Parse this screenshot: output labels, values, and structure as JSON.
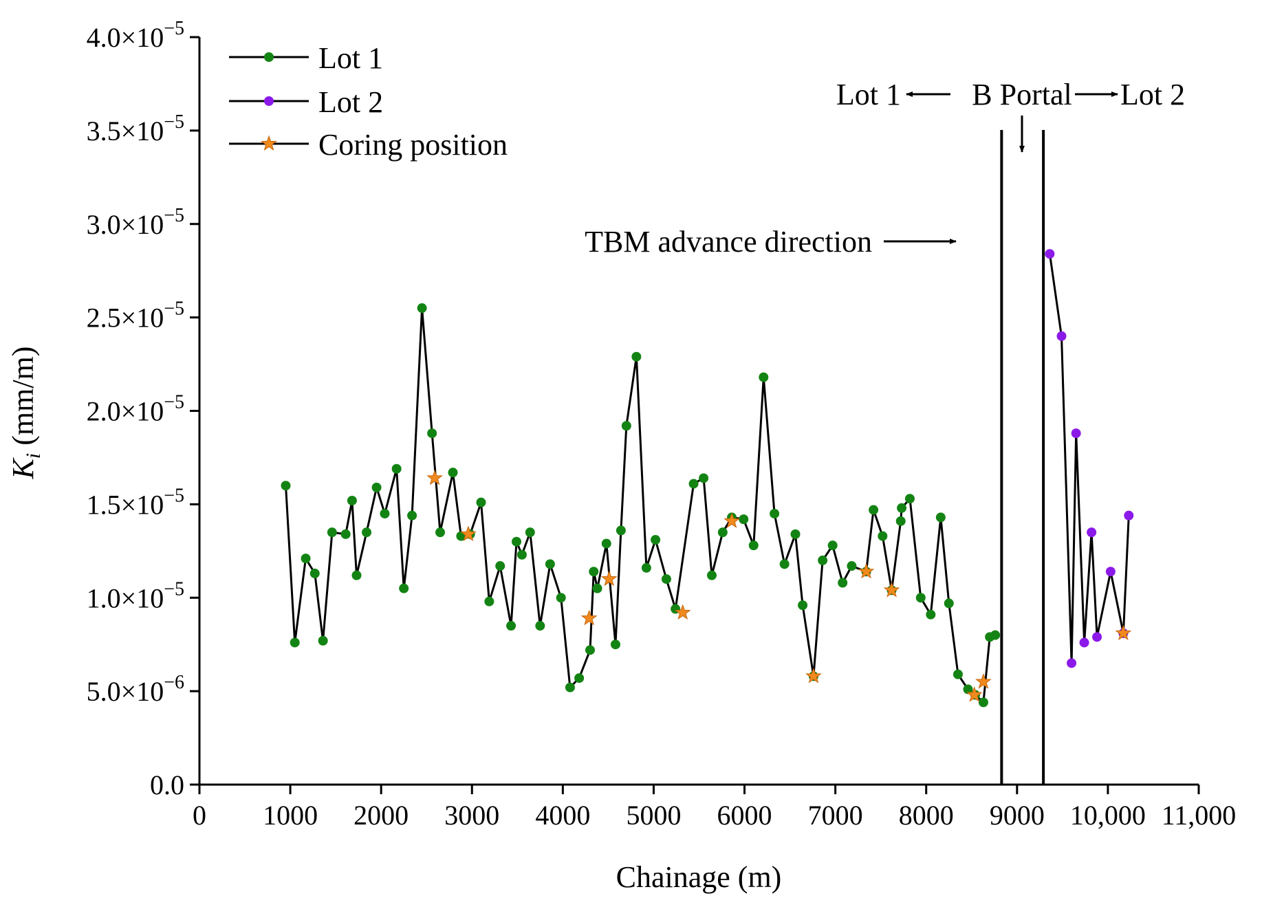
{
  "chart_data": {
    "type": "line",
    "title": "",
    "xlabel": "Chainage (m)",
    "ylabel_main": "K",
    "ylabel_sub": "i",
    "ylabel_unit": " (mm/m)",
    "xlim": [
      0,
      11000
    ],
    "ylim": [
      0,
      4e-05
    ],
    "x_ticks": [
      0,
      1000,
      2000,
      3000,
      4000,
      5000,
      6000,
      7000,
      8000,
      9000,
      10000,
      11000
    ],
    "x_tick_labels": [
      "0",
      "1000",
      "2000",
      "3000",
      "4000",
      "5000",
      "6000",
      "7000",
      "8000",
      "9000",
      "10,000",
      "11,000"
    ],
    "y_ticks": [
      0,
      5e-06,
      1e-05,
      1.5e-05,
      2e-05,
      2.5e-05,
      3e-05,
      3.5e-05,
      4e-05
    ],
    "y_tick_labels": [
      {
        "mantissa": "0.0",
        "exp": ""
      },
      {
        "mantissa": "5.0×10",
        "exp": "−6"
      },
      {
        "mantissa": "1.0×10",
        "exp": "−5"
      },
      {
        "mantissa": "1.5×10",
        "exp": "−5"
      },
      {
        "mantissa": "2.0×10",
        "exp": "−5"
      },
      {
        "mantissa": "2.5×10",
        "exp": "−5"
      },
      {
        "mantissa": "3.0×10",
        "exp": "−5"
      },
      {
        "mantissa": "3.5×10",
        "exp": "−5"
      },
      {
        "mantissa": "4.0×10",
        "exp": "−5"
      }
    ],
    "legend_position": "top-left",
    "series": [
      {
        "name": "Lot 1",
        "marker_color": "#138413",
        "line_color": "#000000",
        "x": [
          950,
          1050,
          1170,
          1270,
          1360,
          1460,
          1610,
          1680,
          1730,
          1840,
          1950,
          2040,
          2170,
          2250,
          2340,
          2450,
          2560,
          2650,
          2790,
          2880,
          2980,
          3100,
          3190,
          3310,
          3430,
          3490,
          3550,
          3640,
          3750,
          3860,
          3980,
          4080,
          4180,
          4300,
          4340,
          4380,
          4480,
          4580,
          4640,
          4700,
          4810,
          4920,
          5020,
          5140,
          5240,
          5440,
          5550,
          5640,
          5760,
          5860,
          5990,
          6100,
          6210,
          6330,
          6440,
          6560,
          6640,
          6760,
          6860,
          6970,
          7080,
          7180,
          7340,
          7420,
          7520,
          7620,
          7720,
          7730,
          7820,
          7940,
          8050,
          8160,
          8250,
          8350,
          8460,
          8540,
          8630,
          8700,
          8760
        ],
        "y": [
          1.6e-05,
          7.6e-06,
          1.21e-05,
          1.13e-05,
          7.7e-06,
          1.35e-05,
          1.34e-05,
          1.52e-05,
          1.12e-05,
          1.35e-05,
          1.59e-05,
          1.45e-05,
          1.69e-05,
          1.05e-05,
          1.44e-05,
          2.55e-05,
          1.88e-05,
          1.35e-05,
          1.67e-05,
          1.33e-05,
          1.34e-05,
          1.51e-05,
          9.8e-06,
          1.17e-05,
          8.5e-06,
          1.3e-05,
          1.23e-05,
          1.35e-05,
          8.5e-06,
          1.18e-05,
          1e-05,
          5.2e-06,
          5.7e-06,
          7.2e-06,
          1.14e-05,
          1.05e-05,
          1.29e-05,
          7.5e-06,
          1.36e-05,
          1.92e-05,
          2.29e-05,
          1.16e-05,
          1.31e-05,
          1.1e-05,
          9.4e-06,
          1.61e-05,
          1.64e-05,
          1.12e-05,
          1.35e-05,
          1.43e-05,
          1.42e-05,
          1.28e-05,
          2.18e-05,
          1.45e-05,
          1.18e-05,
          1.34e-05,
          9.6e-06,
          5.8e-06,
          1.2e-05,
          1.28e-05,
          1.08e-05,
          1.17e-05,
          1.14e-05,
          1.47e-05,
          1.33e-05,
          1.04e-05,
          1.41e-05,
          1.48e-05,
          1.53e-05,
          1e-05,
          9.1e-06,
          1.43e-05,
          9.7e-06,
          5.9e-06,
          5.1e-06,
          4.8e-06,
          4.4e-06,
          7.9e-06,
          8e-06
        ]
      },
      {
        "name": "Lot 2",
        "marker_color": "#8b1ae8",
        "line_color": "#000000",
        "x": [
          9360,
          9490,
          9600,
          9650,
          9740,
          9820,
          9880,
          10030,
          10170,
          10230
        ],
        "y": [
          2.84e-05,
          2.4e-05,
          6.5e-06,
          1.88e-05,
          7.6e-06,
          1.35e-05,
          7.9e-06,
          1.14e-05,
          8.1e-06,
          1.44e-05
        ]
      },
      {
        "name": "Coring position",
        "marker": "star",
        "marker_color": "#f08a1e",
        "x": [
          2590,
          2960,
          4290,
          4510,
          5320,
          5860,
          6760,
          7340,
          7620,
          8530,
          8630,
          10170
        ],
        "y": [
          1.64e-05,
          1.34e-05,
          8.9e-06,
          1.1e-05,
          9.2e-06,
          1.41e-05,
          5.8e-06,
          1.14e-05,
          1.04e-05,
          4.8e-06,
          5.5e-06,
          8.1e-06
        ]
      }
    ],
    "vertical_lines_x": [
      8830,
      9290
    ],
    "annotations": {
      "tbm_label": "TBM advance direction",
      "portal_left": "Lot 1",
      "portal_center": "B Portal",
      "portal_right": "Lot 2"
    }
  }
}
